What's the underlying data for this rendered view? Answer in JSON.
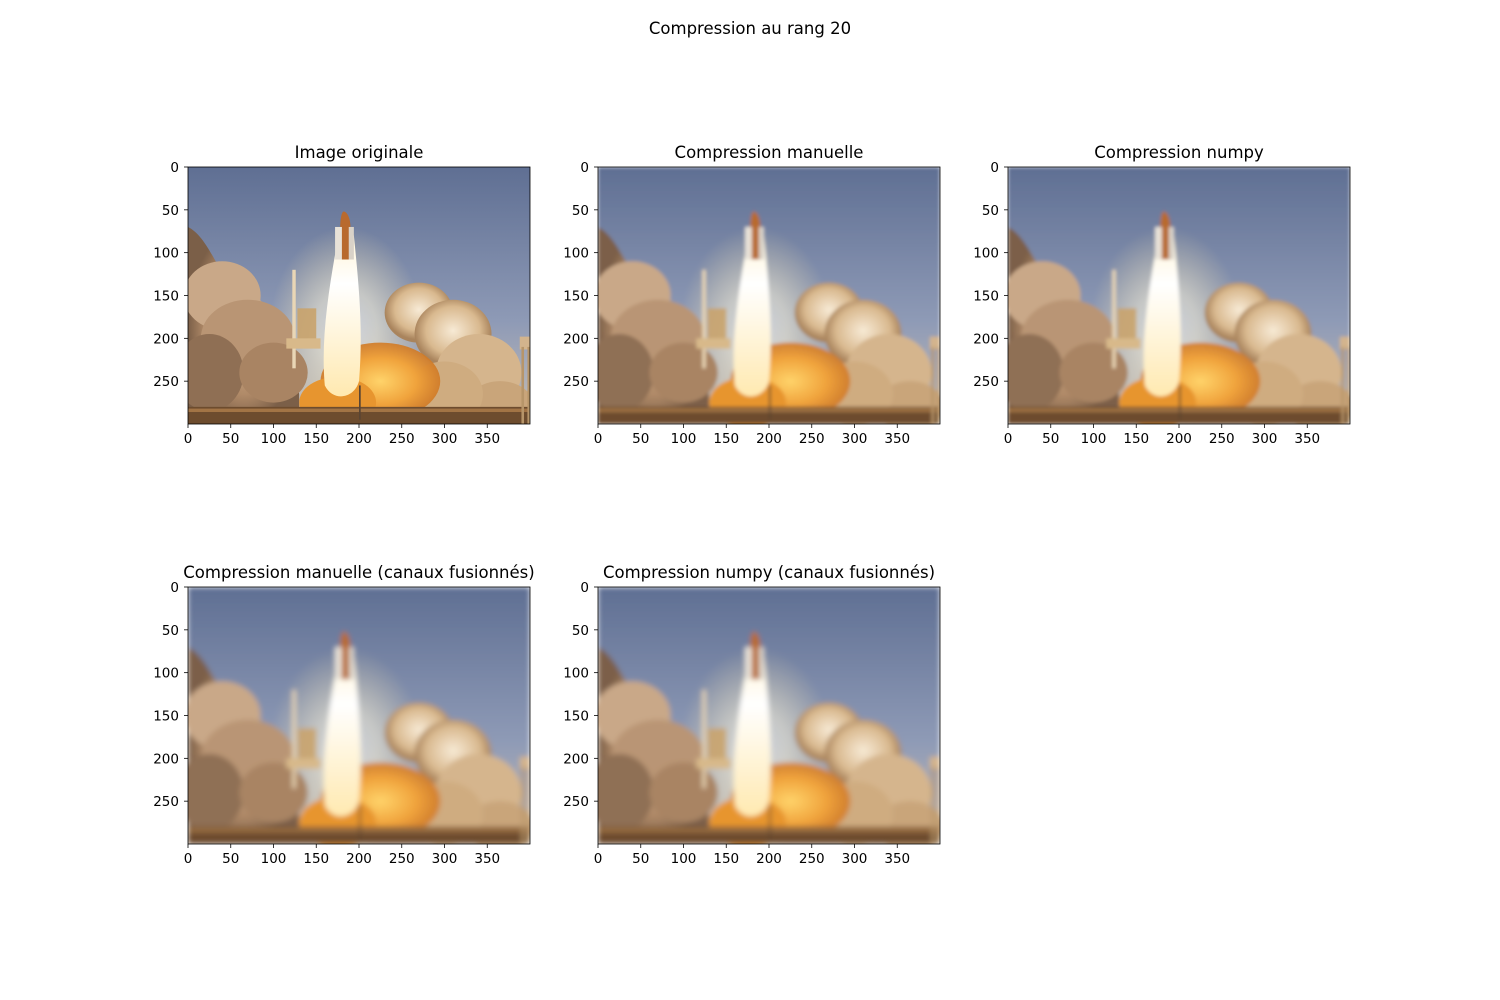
{
  "figure": {
    "suptitle": "Compression au rang 20"
  },
  "chart_data": [
    {
      "type": "image",
      "title": "Image originale",
      "variant": "original",
      "xlim": [
        0,
        400
      ],
      "ylim": [
        300,
        0
      ],
      "xticks": [
        0,
        50,
        100,
        150,
        200,
        250,
        300,
        350
      ],
      "yticks": [
        0,
        50,
        100,
        150,
        200,
        250
      ]
    },
    {
      "type": "image",
      "title": "Compression manuelle",
      "variant": "compressed",
      "xlim": [
        0,
        400
      ],
      "ylim": [
        300,
        0
      ],
      "xticks": [
        0,
        50,
        100,
        150,
        200,
        250,
        300,
        350
      ],
      "yticks": [
        0,
        50,
        100,
        150,
        200,
        250
      ]
    },
    {
      "type": "image",
      "title": "Compression numpy",
      "variant": "compressed",
      "xlim": [
        0,
        400
      ],
      "ylim": [
        300,
        0
      ],
      "xticks": [
        0,
        50,
        100,
        150,
        200,
        250,
        300,
        350
      ],
      "yticks": [
        0,
        50,
        100,
        150,
        200,
        250
      ]
    },
    {
      "type": "image",
      "title": "Compression manuelle (canaux fusionnés)",
      "variant": "compressed-merged",
      "xlim": [
        0,
        400
      ],
      "ylim": [
        300,
        0
      ],
      "xticks": [
        0,
        50,
        100,
        150,
        200,
        250,
        300,
        350
      ],
      "yticks": [
        0,
        50,
        100,
        150,
        200,
        250
      ]
    },
    {
      "type": "image",
      "title": "Compression numpy (canaux fusionnés)",
      "variant": "compressed-merged",
      "xlim": [
        0,
        400
      ],
      "ylim": [
        300,
        0
      ],
      "xticks": [
        0,
        50,
        100,
        150,
        200,
        250,
        300,
        350
      ],
      "yticks": [
        0,
        50,
        100,
        150,
        200,
        250
      ]
    }
  ]
}
